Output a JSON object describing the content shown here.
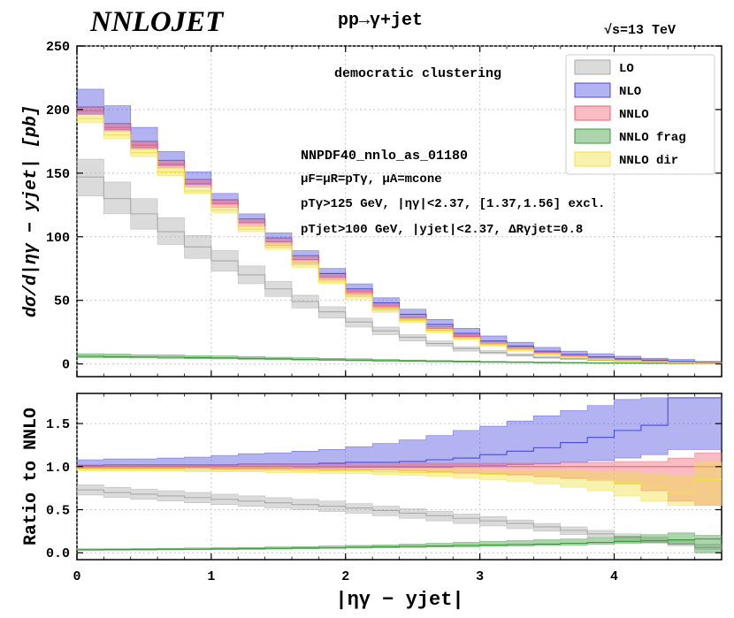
{
  "header": {
    "logo": "NNLOJET",
    "process": "pp→γ+jet",
    "energy": "√s=13 TeV"
  },
  "annotations": {
    "clustering": "democratic clustering",
    "pdf": "NNPDF40_nnlo_as_01180",
    "scales": "μF=μR=pTγ, μA=mcone",
    "photon_cuts": "pTγ>125 GeV, |ηγ|<2.37, [1.37,1.56] excl.",
    "jet_cuts": "pTjet>100 GeV, |yjet|<2.37, ΔRγjet=0.8"
  },
  "chart_data": {
    "type": "step-band",
    "x_label": "|ηγ − yjet|",
    "x_ticks": [
      0,
      1,
      2,
      3,
      4
    ],
    "x_range": [
      0,
      4.8
    ],
    "bin_edges": [
      0.0,
      0.2,
      0.4,
      0.6,
      0.8,
      1.0,
      1.2,
      1.4,
      1.6,
      1.8,
      2.0,
      2.2,
      2.4,
      2.6,
      2.8,
      3.0,
      3.2,
      3.4,
      3.6,
      3.8,
      4.0,
      4.2,
      4.4,
      4.6,
      4.8
    ],
    "main": {
      "y_label": "dσ/d|ηγ − yjet|  [pb]",
      "y_range": [
        -10,
        250
      ],
      "y_ticks": [
        0,
        50,
        100,
        150,
        200,
        250
      ],
      "series": [
        {
          "name": "LO",
          "color": "#a9a9a9",
          "central": [
            147,
            130,
            118,
            104,
            92,
            81,
            70,
            59,
            49,
            41,
            33,
            26,
            21,
            16,
            12,
            9,
            7,
            5,
            4,
            3,
            2,
            1.5,
            1,
            0.5
          ],
          "low": [
            132,
            118,
            106,
            94,
            83,
            73,
            63,
            53,
            44,
            36,
            29,
            23,
            18,
            14,
            10,
            8,
            6,
            4.5,
            3.5,
            2.5,
            1.8,
            1.2,
            0.8,
            0.4
          ],
          "high": [
            161,
            143,
            130,
            115,
            101,
            89,
            77,
            65,
            54,
            45,
            36,
            29,
            23,
            18,
            13.5,
            10.5,
            8,
            6,
            4.5,
            3.5,
            2.5,
            1.8,
            1.2,
            0.7
          ]
        },
        {
          "name": "NLO",
          "color": "#4a4ae0",
          "central": [
            202,
            189,
            175,
            160,
            145,
            129,
            114,
            99,
            85,
            71,
            59,
            48,
            39,
            31,
            24,
            18,
            14,
            10,
            7.5,
            5.5,
            4,
            3,
            2,
            1.2
          ],
          "low": [
            196,
            184,
            170,
            156,
            141,
            126,
            111,
            96,
            82,
            69,
            57,
            46,
            37,
            29,
            22,
            17,
            13,
            9,
            6.5,
            4.5,
            3.3,
            2.3,
            1.5,
            0.8
          ],
          "high": [
            216,
            203,
            186,
            167,
            151,
            134,
            118,
            103,
            89,
            75,
            63,
            52,
            43,
            35,
            28,
            22,
            17,
            13,
            10,
            8,
            6,
            4.5,
            3.5,
            2
          ]
        },
        {
          "name": "NNLO",
          "color": "#f06070",
          "central": [
            199,
            186,
            172,
            157,
            142,
            126,
            111,
            96,
            82,
            68,
            56,
            45,
            36,
            28,
            21.5,
            16,
            12,
            8.5,
            6,
            4.2,
            3,
            2,
            1.2,
            0.7
          ],
          "low": [
            196,
            183,
            169,
            154,
            139,
            123,
            108,
            93,
            79,
            66,
            54,
            43,
            34.5,
            26.5,
            20,
            15,
            11,
            7.8,
            5.5,
            3.8,
            2.6,
            1.7,
            1,
            0.5
          ],
          "high": [
            202,
            189,
            175,
            160,
            145,
            129,
            114,
            99,
            85,
            70,
            58,
            47,
            37.5,
            29.5,
            23,
            17,
            13,
            9.2,
            6.6,
            4.6,
            3.3,
            2.3,
            1.5,
            0.9
          ]
        },
        {
          "name": "NNLO frag",
          "color": "#3a9a3a",
          "central": [
            6,
            5.8,
            5.5,
            5.3,
            5,
            4.7,
            4.3,
            4,
            3.6,
            3.3,
            3,
            2.6,
            2.3,
            2,
            1.8,
            1.5,
            1.3,
            1.1,
            0.9,
            0.7,
            0.6,
            0.5,
            0.35,
            0.25
          ],
          "low": [
            5,
            4.8,
            4.6,
            4.4,
            4.1,
            3.9,
            3.6,
            3.3,
            3,
            2.7,
            2.4,
            2.1,
            1.9,
            1.6,
            1.4,
            1.2,
            1,
            0.85,
            0.7,
            0.55,
            0.45,
            0.35,
            0.25,
            0.15
          ],
          "high": [
            8,
            7.7,
            7.3,
            7,
            6.6,
            6.2,
            5.7,
            5.3,
            4.8,
            4.4,
            4,
            3.5,
            3.1,
            2.7,
            2.4,
            2,
            1.8,
            1.5,
            1.2,
            1,
            0.8,
            0.65,
            0.5,
            0.35
          ]
        },
        {
          "name": "NNLO dir",
          "color": "#f0e040",
          "central": [
            193,
            180,
            166,
            151,
            136,
            121,
            106,
            92,
            78,
            65,
            53,
            42,
            34,
            26,
            20,
            15,
            11,
            7.8,
            5.5,
            3.8,
            2.5,
            1.6,
            1,
            0.5
          ],
          "low": [
            190,
            177,
            163,
            148,
            134,
            119,
            104,
            90,
            76,
            63,
            51,
            40.5,
            32.5,
            24.5,
            19,
            14,
            10,
            7,
            5,
            3.3,
            2.2,
            1.4,
            0.8,
            0.4
          ],
          "high": [
            196,
            183,
            169,
            154,
            139,
            124,
            108,
            94,
            80,
            67,
            55,
            44,
            35.5,
            27.5,
            21,
            16,
            12,
            8.5,
            6,
            4.2,
            2.9,
            1.9,
            1.2,
            0.65
          ]
        }
      ]
    },
    "ratio": {
      "y_label": "Ratio to NNLO",
      "y_range": [
        -0.08,
        1.85
      ],
      "y_ticks": [
        0.0,
        0.5,
        1.0,
        1.5
      ],
      "series": [
        {
          "name": "LO",
          "color": "#a9a9a9",
          "central": [
            0.73,
            0.7,
            0.68,
            0.66,
            0.64,
            0.62,
            0.6,
            0.58,
            0.56,
            0.54,
            0.52,
            0.49,
            0.46,
            0.43,
            0.4,
            0.37,
            0.34,
            0.3,
            0.26,
            0.22,
            0.18,
            0.14,
            0.1,
            0.06
          ],
          "low": [
            0.67,
            0.64,
            0.62,
            0.6,
            0.58,
            0.56,
            0.54,
            0.52,
            0.5,
            0.48,
            0.46,
            0.43,
            0.4,
            0.37,
            0.34,
            0.31,
            0.28,
            0.25,
            0.21,
            0.18,
            0.14,
            0.11,
            0.08,
            0.04
          ],
          "high": [
            0.79,
            0.76,
            0.74,
            0.72,
            0.7,
            0.68,
            0.66,
            0.64,
            0.62,
            0.6,
            0.57,
            0.54,
            0.51,
            0.48,
            0.45,
            0.42,
            0.38,
            0.34,
            0.3,
            0.26,
            0.22,
            0.18,
            0.14,
            0.1
          ]
        },
        {
          "name": "NLO",
          "color": "#4a4ae0",
          "central": [
            1.01,
            1.02,
            1.02,
            1.02,
            1.02,
            1.02,
            1.03,
            1.03,
            1.03,
            1.04,
            1.05,
            1.05,
            1.06,
            1.08,
            1.1,
            1.14,
            1.18,
            1.22,
            1.28,
            1.34,
            1.42,
            1.48,
            1.8,
            1.8
          ],
          "low": [
            0.98,
            0.98,
            0.98,
            0.98,
            0.98,
            0.98,
            0.98,
            0.98,
            0.98,
            0.98,
            0.99,
            0.99,
            0.99,
            0.99,
            1.0,
            1.01,
            1.02,
            1.03,
            1.05,
            1.07,
            1.1,
            1.14,
            1.2,
            1.2
          ],
          "high": [
            1.08,
            1.09,
            1.09,
            1.1,
            1.11,
            1.13,
            1.15,
            1.16,
            1.18,
            1.2,
            1.23,
            1.27,
            1.31,
            1.36,
            1.42,
            1.47,
            1.53,
            1.59,
            1.65,
            1.71,
            1.78,
            1.8,
            1.8,
            1.8
          ]
        },
        {
          "name": "NNLO",
          "color": "#f06070",
          "central": [
            1.0,
            1.0,
            1.0,
            1.0,
            1.0,
            1.0,
            1.0,
            1.0,
            1.0,
            1.0,
            1.0,
            1.0,
            1.0,
            1.0,
            1.0,
            1.0,
            1.0,
            1.0,
            1.0,
            1.0,
            1.0,
            1.0,
            1.0,
            1.0
          ],
          "low": [
            0.98,
            0.98,
            0.98,
            0.98,
            0.98,
            0.97,
            0.97,
            0.97,
            0.97,
            0.96,
            0.96,
            0.96,
            0.95,
            0.94,
            0.93,
            0.92,
            0.91,
            0.89,
            0.87,
            0.84,
            0.8,
            0.72,
            0.6,
            0.55
          ],
          "high": [
            1.02,
            1.02,
            1.02,
            1.02,
            1.02,
            1.02,
            1.03,
            1.03,
            1.03,
            1.03,
            1.03,
            1.03,
            1.04,
            1.04,
            1.04,
            1.04,
            1.04,
            1.04,
            1.05,
            1.05,
            1.06,
            1.06,
            1.1,
            1.16
          ]
        },
        {
          "name": "NNLO frag",
          "color": "#3a9a3a",
          "central": [
            0.035,
            0.037,
            0.038,
            0.04,
            0.042,
            0.045,
            0.048,
            0.052,
            0.056,
            0.06,
            0.065,
            0.07,
            0.075,
            0.08,
            0.085,
            0.09,
            0.095,
            0.1,
            0.11,
            0.12,
            0.13,
            0.14,
            0.15,
            0.16
          ],
          "low": [
            0.028,
            0.029,
            0.031,
            0.033,
            0.035,
            0.037,
            0.04,
            0.043,
            0.046,
            0.05,
            0.054,
            0.058,
            0.062,
            0.066,
            0.07,
            0.075,
            0.08,
            0.085,
            0.09,
            0.1,
            0.11,
            0.12,
            0.1,
            0.0
          ],
          "high": [
            0.045,
            0.047,
            0.049,
            0.052,
            0.055,
            0.058,
            0.062,
            0.067,
            0.072,
            0.078,
            0.085,
            0.092,
            0.1,
            0.11,
            0.12,
            0.13,
            0.14,
            0.15,
            0.16,
            0.17,
            0.19,
            0.21,
            0.23,
            0.2
          ]
        },
        {
          "name": "NNLO dir",
          "color": "#f0e040",
          "central": [
            0.97,
            0.97,
            0.97,
            0.97,
            0.96,
            0.96,
            0.96,
            0.96,
            0.95,
            0.95,
            0.95,
            0.94,
            0.93,
            0.93,
            0.92,
            0.91,
            0.9,
            0.88,
            0.86,
            0.84,
            0.81,
            0.76,
            0.7,
            0.85
          ],
          "low": [
            0.95,
            0.95,
            0.95,
            0.95,
            0.94,
            0.94,
            0.94,
            0.93,
            0.93,
            0.92,
            0.92,
            0.91,
            0.9,
            0.89,
            0.87,
            0.85,
            0.83,
            0.8,
            0.76,
            0.72,
            0.66,
            0.6,
            0.55,
            0.55
          ],
          "high": [
            0.99,
            0.99,
            0.99,
            0.99,
            0.99,
            0.99,
            0.99,
            0.99,
            0.98,
            0.98,
            0.98,
            0.98,
            0.97,
            0.97,
            0.97,
            0.96,
            0.96,
            0.95,
            0.95,
            0.94,
            0.93,
            0.92,
            0.9,
            1.05
          ]
        }
      ]
    }
  }
}
